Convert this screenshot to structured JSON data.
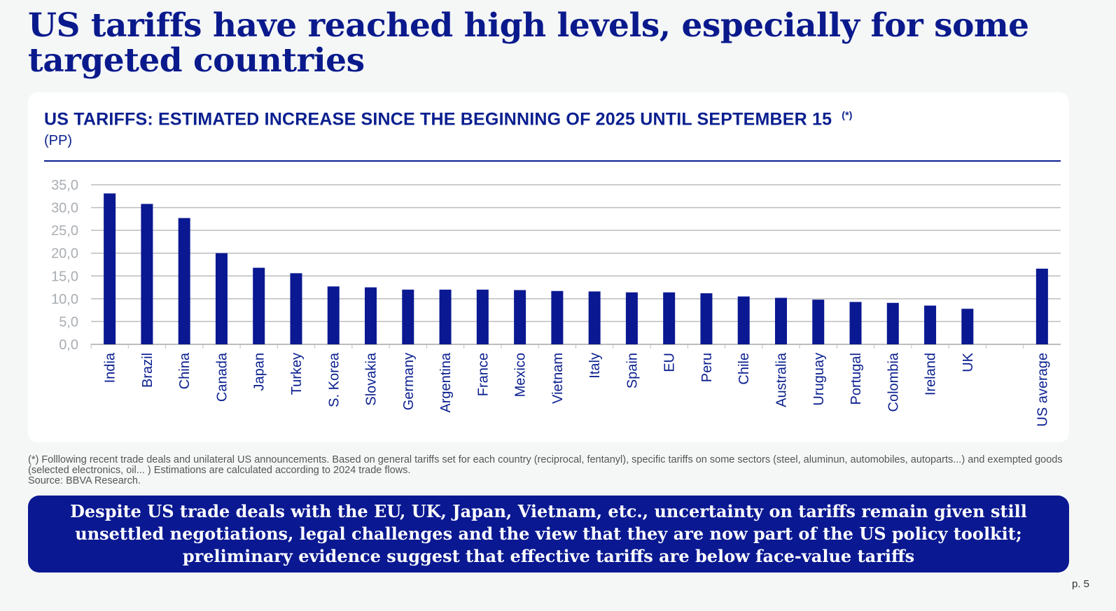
{
  "title": "US tariffs have reached high levels, especially for some targeted countries",
  "chart_data": {
    "type": "bar",
    "title": "US TARIFFS: ESTIMATED INCREASE SINCE THE BEGINNING OF 2025 UNTIL SEPTEMBER 15",
    "title_note": "(*)",
    "ylabel": "(PP)",
    "xlabel": "",
    "ylim": [
      0,
      35
    ],
    "yticks": [
      "0,0",
      "5,0",
      "10,0",
      "15,0",
      "20,0",
      "25,0",
      "30,0",
      "35,0"
    ],
    "grid": true,
    "color": "#0a1891",
    "categories": [
      "India",
      "Brazil",
      "China",
      "Canada",
      "Japan",
      "Turkey",
      "S. Korea",
      "Slovakia",
      "Germany",
      "Argentina",
      "France",
      "Mexico",
      "Vietnam",
      "Italy",
      "Spain",
      "EU",
      "Peru",
      "Chile",
      "Australia",
      "Uruguay",
      "Portugal",
      "Colombia",
      "Ireland",
      "UK",
      "",
      "US average"
    ],
    "values": [
      33.1,
      30.8,
      27.7,
      20.0,
      16.8,
      15.6,
      12.7,
      12.5,
      12.0,
      12.0,
      12.0,
      11.9,
      11.7,
      11.6,
      11.4,
      11.4,
      11.2,
      10.5,
      10.2,
      9.8,
      9.3,
      9.1,
      8.5,
      7.8,
      null,
      16.6
    ]
  },
  "footnote": {
    "line1": "(*) Folllowing recent trade deals and unilateral US announcements. Based on  general tariffs set for each country (reciprocal, fentanyl), specific tariffs on some sectors (steel, aluminun, automobiles, autoparts...) and exempted goods (selected electronics, oil... ) Estimations are calculated according to 2024 trade flows.",
    "source": "Source: BBVA Research."
  },
  "banner": "Despite US trade deals with the EU, UK, Japan, Vietnam, etc., uncertainty on tariffs remain given still unsettled negotiations, legal challenges and the view that they are now part of the US policy toolkit; preliminary evidence suggest that effective tariffs are below face-value tariffs",
  "page_number": "p. 5"
}
